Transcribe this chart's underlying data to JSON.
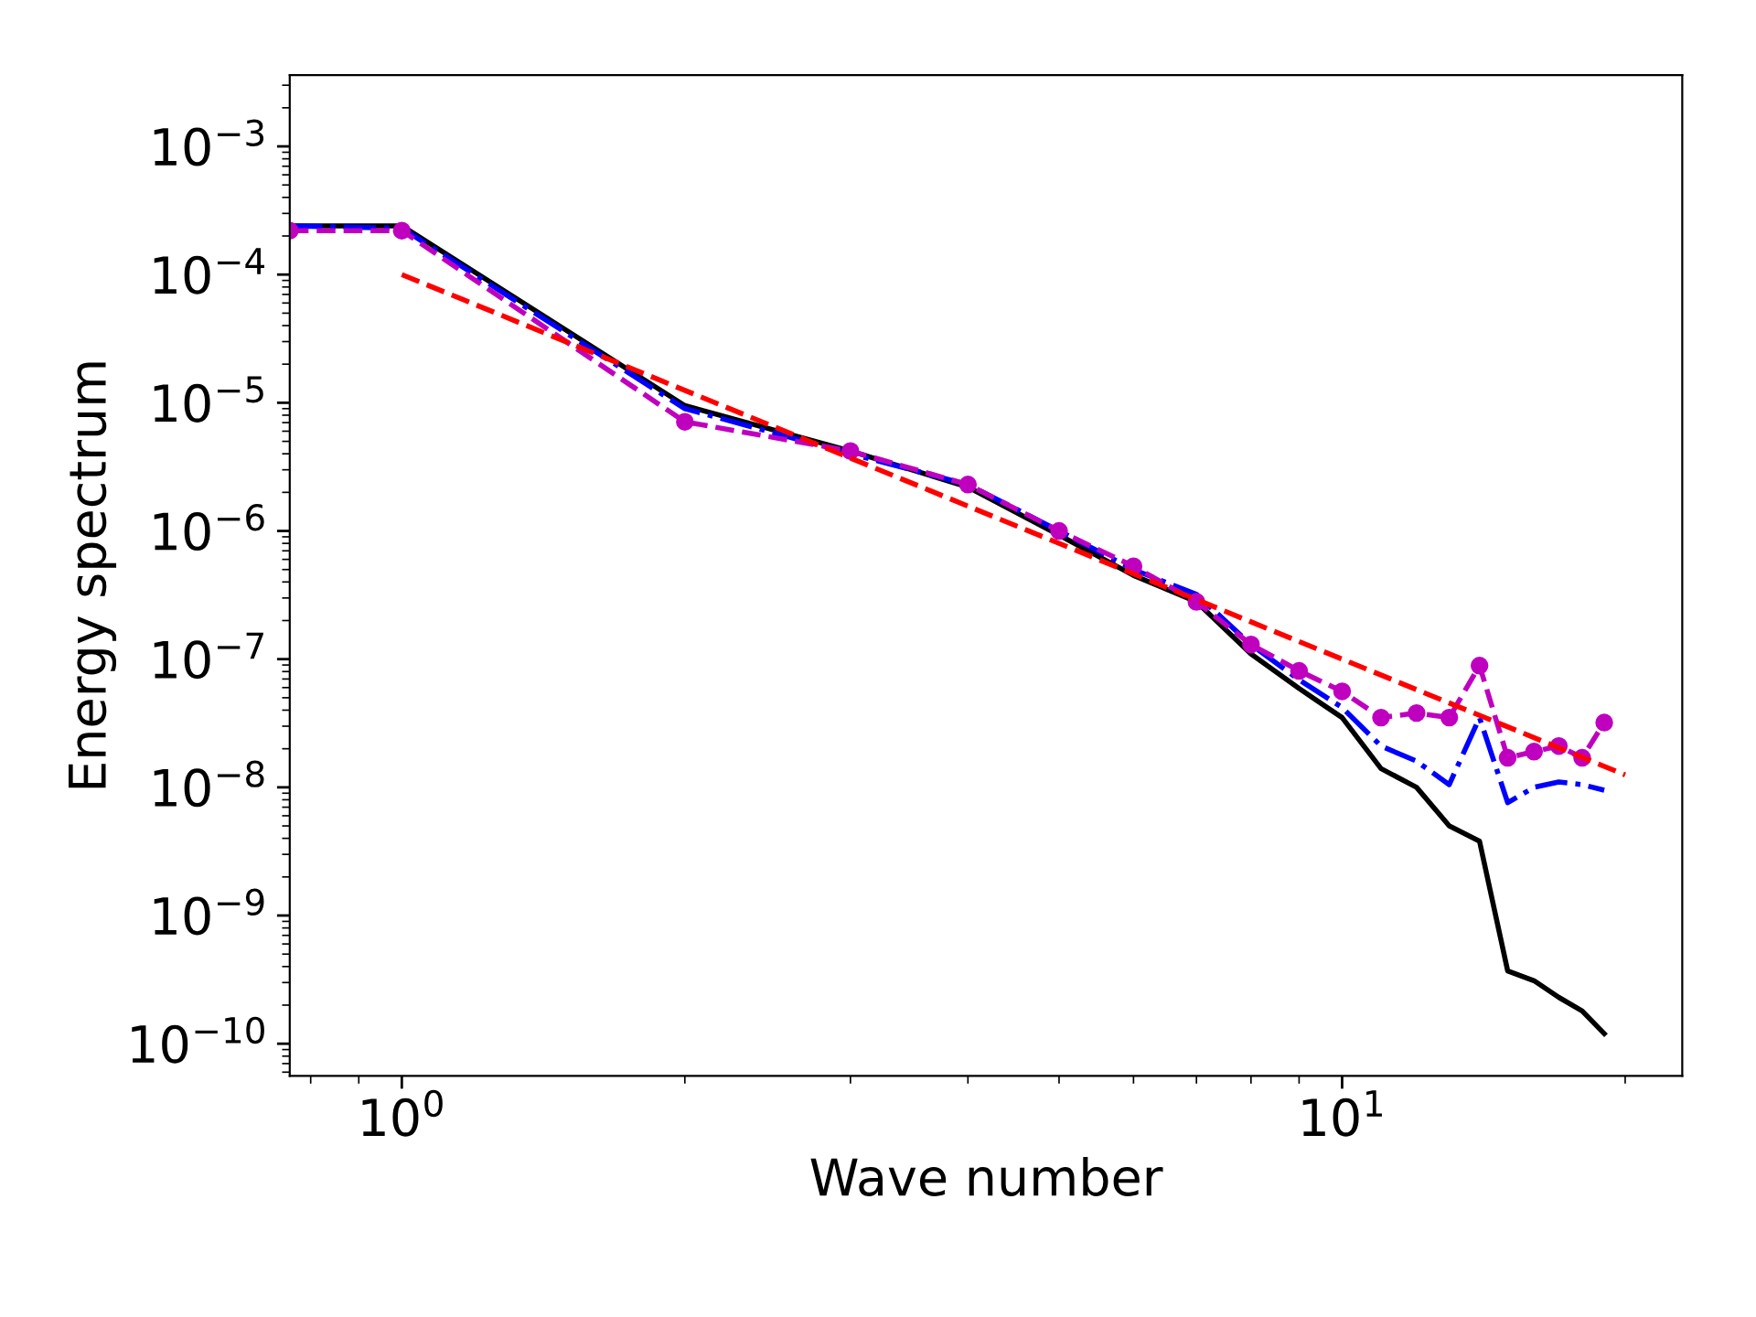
{
  "chart_data": {
    "type": "line",
    "xlabel": "Wave number",
    "ylabel": "Energy spectrum",
    "log": "xy",
    "grid": false,
    "xlim": [
      0.76,
      23
    ],
    "ylim": [
      5.6e-11,
      0.0036
    ],
    "xticks": [
      {
        "value": 1,
        "label": "10$^{0}$"
      },
      {
        "value": 10,
        "label": "10$^{1}$"
      }
    ],
    "yticks": [
      {
        "value": 1e-10,
        "label": "10$^{−10}$"
      },
      {
        "value": 1e-09,
        "label": "10$^{−9}$"
      },
      {
        "value": 1e-08,
        "label": "10$^{−8}$"
      },
      {
        "value": 1e-07,
        "label": "10$^{−7}$"
      },
      {
        "value": 1e-06,
        "label": "10$^{−6}$"
      },
      {
        "value": 1e-05,
        "label": "10$^{−5}$"
      },
      {
        "value": 0.0001,
        "label": "10$^{−4}$"
      },
      {
        "value": 0.001,
        "label": "10$^{−3}$"
      }
    ],
    "series": [
      {
        "color": "#000000",
        "line_style": "solid",
        "marker": "none",
        "x": [
          0.76,
          1,
          2,
          3,
          4,
          5,
          6,
          7,
          8,
          9,
          10,
          11,
          12,
          13,
          14,
          15,
          16,
          17,
          18,
          19
        ],
        "values": [
          0.00024,
          0.00024,
          9.5e-06,
          4.2e-06,
          2.2e-06,
          9.3e-07,
          4.5e-07,
          2.8e-07,
          1.1e-07,
          5.9e-08,
          3.5e-08,
          1.4e-08,
          1e-08,
          5e-09,
          3.8e-09,
          3.7e-10,
          3.1e-10,
          2.3e-10,
          1.8e-10,
          1.2e-10
        ]
      },
      {
        "color": "#0000ff",
        "line_style": "dashdot",
        "marker": "none",
        "x": [
          0.76,
          1,
          2,
          3,
          4,
          5,
          6,
          7,
          8,
          9,
          10,
          11,
          12,
          13,
          14,
          15,
          16,
          17,
          18,
          19
        ],
        "values": [
          0.00024,
          0.00023,
          9e-06,
          4e-06,
          2.3e-06,
          1e-06,
          5e-07,
          3.2e-07,
          1.3e-07,
          6.9e-08,
          4.2e-08,
          2.1e-08,
          1.6e-08,
          1.05e-08,
          3.5e-08,
          7.6e-09,
          1e-08,
          1.1e-08,
          1.05e-08,
          9.5e-09
        ]
      },
      {
        "color": "#bf00bf",
        "line_style": "dashed",
        "marker": "circle",
        "x": [
          0.76,
          1,
          2,
          3,
          4,
          5,
          6,
          7,
          8,
          9,
          10,
          11,
          12,
          13,
          14,
          15,
          16,
          17,
          18,
          19
        ],
        "values": [
          0.00022,
          0.00022,
          7.1e-06,
          4.2e-06,
          2.3e-06,
          1e-06,
          5.3e-07,
          2.8e-07,
          1.3e-07,
          8.1e-08,
          5.6e-08,
          3.5e-08,
          3.8e-08,
          3.5e-08,
          8.9e-08,
          1.7e-08,
          1.9e-08,
          2.1e-08,
          1.7e-08,
          3.2e-08
        ]
      },
      {
        "color": "#ff0000",
        "line_style": "dashed",
        "marker": "none",
        "x": [
          1,
          20
        ],
        "values": [
          0.0001,
          1.25e-08
        ]
      }
    ]
  }
}
